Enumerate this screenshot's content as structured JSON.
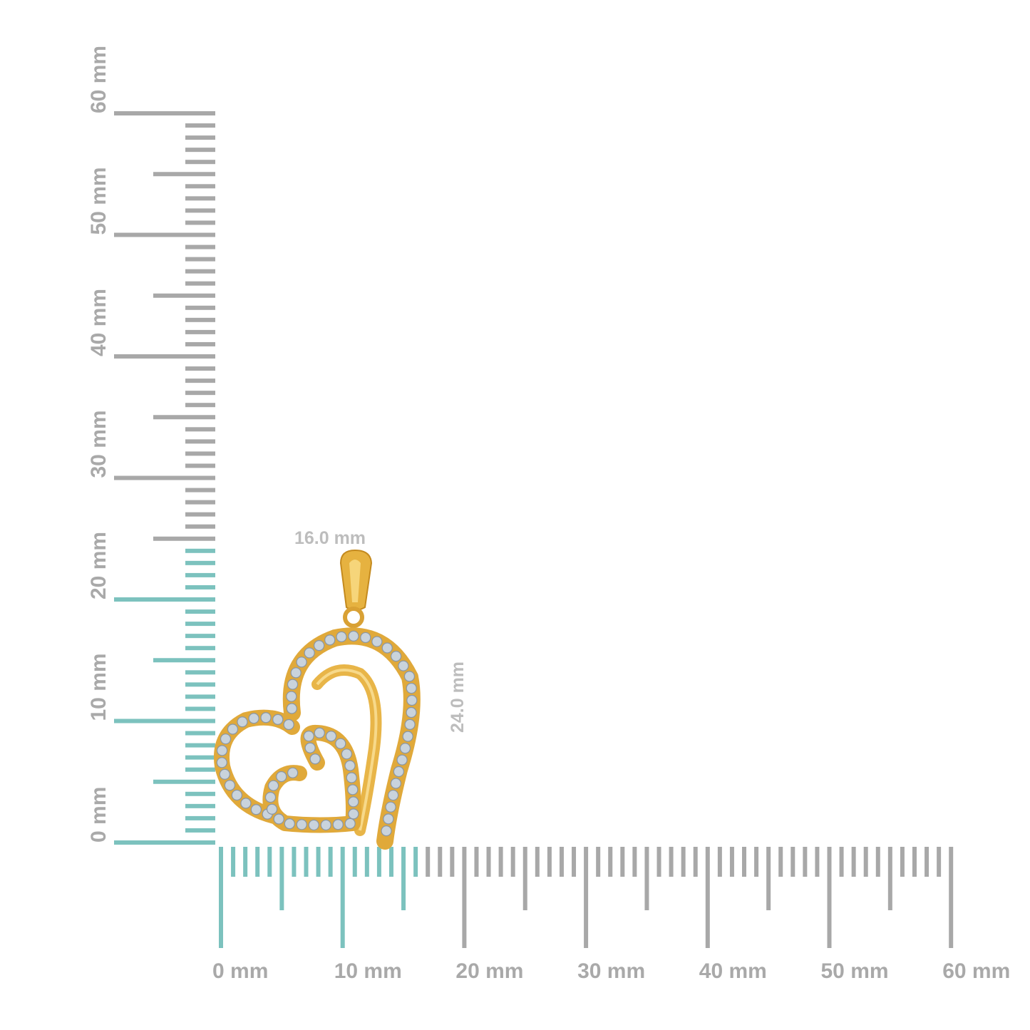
{
  "ruler": {
    "unit": "mm",
    "min": 0,
    "max": 60,
    "vertical_labels": [
      "0 mm",
      "10 mm",
      "20 mm",
      "30 mm",
      "40 mm",
      "50 mm",
      "60 mm"
    ],
    "horizontal_labels": [
      "0 mm",
      "10 mm",
      "20 mm",
      "30 mm",
      "40 mm",
      "50 mm",
      "60 mm"
    ],
    "highlight_height_mm": 24,
    "highlight_width_mm": 16
  },
  "dimensions": {
    "width_label": "16.0 mm",
    "height_label": "24.0 mm"
  },
  "colors": {
    "highlight": "#7cc2be",
    "tick": "#a8a8a8",
    "label": "#a9a9a9",
    "gold": "#e0a93a",
    "diamond": "#c9d3dc"
  }
}
